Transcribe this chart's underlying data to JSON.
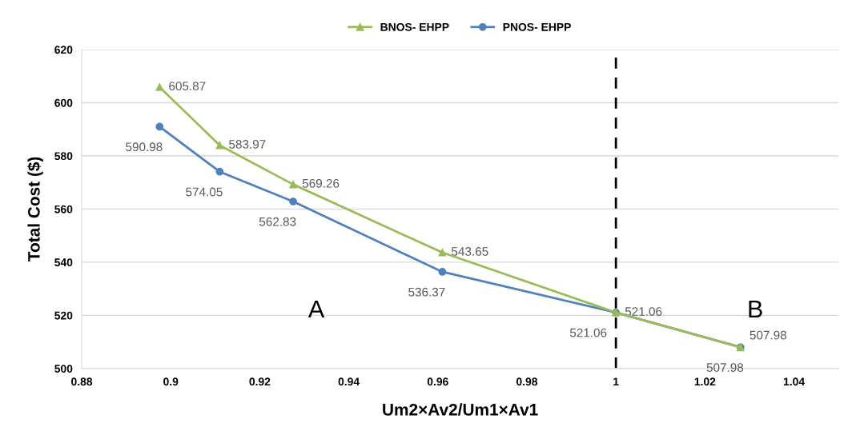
{
  "chart_data": {
    "type": "line",
    "xlabel": "Um2×Av2/Um1×Av1",
    "ylabel": "Total Cost ($)",
    "x": [
      0.8975,
      0.911,
      0.9275,
      0.961,
      1.0,
      1.028
    ],
    "series": [
      {
        "name": "BNOS- EHPP",
        "color": "#9bbb59",
        "marker": "triangle",
        "values": [
          605.87,
          583.97,
          569.26,
          543.65,
          521.06,
          507.98
        ]
      },
      {
        "name": "PNOS- EHPP",
        "color": "#4f81bd",
        "marker": "circle",
        "values": [
          590.98,
          574.05,
          562.83,
          536.37,
          521.06,
          507.98
        ]
      }
    ],
    "xlim": [
      0.88,
      1.05
    ],
    "xticks": [
      0.88,
      0.9,
      0.92,
      0.94,
      0.96,
      0.98,
      {
        "value": 1.0,
        "label": "1"
      },
      1.02,
      1.04
    ],
    "ylim": [
      500,
      620
    ],
    "yticks": [
      500,
      520,
      540,
      560,
      580,
      600,
      620
    ],
    "ref_lines": [
      {
        "axis": "x",
        "value": 1.0,
        "color": "#000000",
        "line_style": "dashed"
      }
    ],
    "annotations": [
      "A",
      "B"
    ],
    "data_labels": true,
    "grid": "y",
    "legend": "top",
    "line_style": "solid"
  }
}
